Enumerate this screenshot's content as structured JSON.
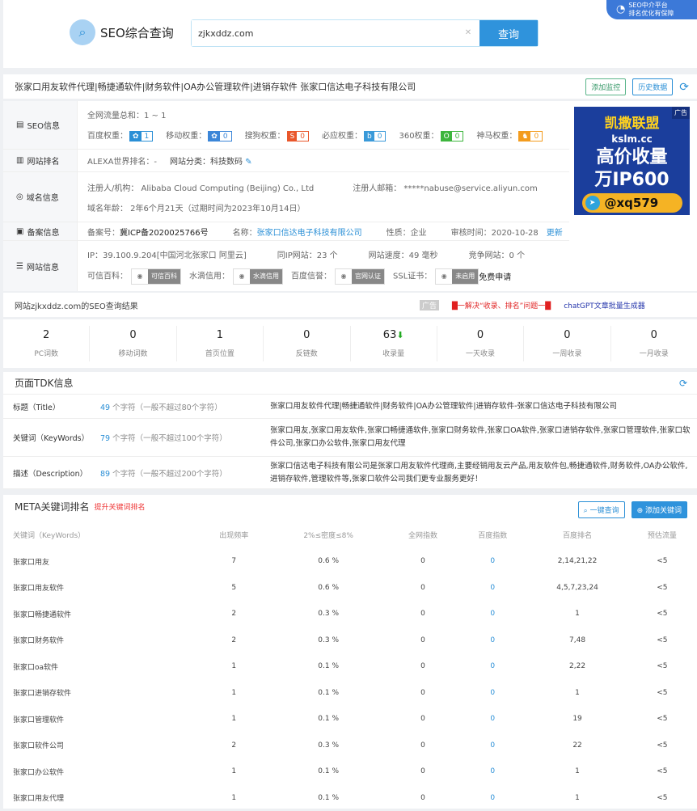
{
  "header": {
    "logo": "SEO综合查询",
    "search_value": "zjkxddz.com",
    "search_button": "查询",
    "promo_line1": "SEO中介平台",
    "promo_line2": "排名优化有保障"
  },
  "titlebar": {
    "title": "张家口用友软件代理|畅捷通软件|财务软件|OA办公管理软件|进销存软件 张家口信达电子科技有限公司",
    "monitor": "添加监控",
    "history": "历史数据"
  },
  "seo": {
    "label": "SEO信息",
    "traffic": "全网流量总和：1 ~ 1",
    "weights": [
      {
        "name": "百度权重：",
        "value": "1",
        "color": "#2a8fd6",
        "glyph": "✿"
      },
      {
        "name": "移动权重：",
        "value": "0",
        "color": "#3b86d8",
        "glyph": "✿"
      },
      {
        "name": "搜狗权重：",
        "value": "0",
        "color": "#e9572b",
        "glyph": "S"
      },
      {
        "name": "必应权重：",
        "value": "0",
        "color": "#3a9ad9",
        "glyph": "b"
      },
      {
        "name": "360权重：",
        "value": "0",
        "color": "#3db53d",
        "glyph": "O"
      },
      {
        "name": "神马权重：",
        "value": "0",
        "color": "#f39c1e",
        "glyph": "♞"
      }
    ]
  },
  "rank": {
    "label": "网站排名",
    "alexa": "ALEXA世界排名：-",
    "category": "网站分类：科技数码"
  },
  "domain": {
    "label": "域名信息",
    "registrant": "注册人/机构： Alibaba Cloud Computing (Beijing) Co., Ltd",
    "email": "注册人邮箱： *****nabuse@service.aliyun.com",
    "age": "域名年龄： 2年6个月21天（过期时间为2023年10月14日）"
  },
  "icp": {
    "label": "备案信息",
    "number_label": "备案号：",
    "number": "冀ICP备2020025766号",
    "name_label": "名称：",
    "name": "张家口信达电子科技有限公司",
    "type": "性质：企业",
    "time": "审核时间：2020-10-28",
    "update": "更新"
  },
  "site": {
    "label": "网站信息",
    "ip": "IP：39.100.9.204[中国河北张家口 阿里云]",
    "same_ip": "同IP网站：23 个",
    "speed": "网站速度：49 毫秒",
    "competitors": "竞争网站：0 个",
    "certs": [
      {
        "label": "可信百科：",
        "badge": "可信百科"
      },
      {
        "label": "水滴信用：",
        "badge": "水滴信用"
      },
      {
        "label": "百度信誉：",
        "badge": "官网认证"
      },
      {
        "label": "SSL证书：",
        "badge": "未启用"
      }
    ],
    "ssl_apply": "免费申请"
  },
  "ad": {
    "tag": "广告",
    "line1": "凯撒联盟",
    "line2": "kslm.cc",
    "line3": "高价收量",
    "line4": "万IP600",
    "contact": "@xq579"
  },
  "result": {
    "text": "网站zjkxddz.com的SEO查询结果",
    "ad_tag": "广告",
    "link1": "█一解决“收录、排名”问题一█",
    "link2": "chatGPT文章批量生成器"
  },
  "stats": [
    {
      "v": "2",
      "l": "PC词数"
    },
    {
      "v": "0",
      "l": "移动词数"
    },
    {
      "v": "1",
      "l": "首页位置"
    },
    {
      "v": "0",
      "l": "反链数"
    },
    {
      "v": "63",
      "l": "收录量",
      "arrow": "⬇"
    },
    {
      "v": "0",
      "l": "一天收录"
    },
    {
      "v": "0",
      "l": "一周收录"
    },
    {
      "v": "0",
      "l": "一月收录"
    }
  ],
  "tdk": {
    "title": "页面TDK信息",
    "rows": [
      {
        "a": "标题（Title）",
        "n": "49",
        "b": " 个字符（一般不超过80个字符）",
        "c": "张家口用友软件代理|畅捷通软件|财务软件|OA办公管理软件|进销存软件-张家口信达电子科技有限公司"
      },
      {
        "a": "关键词（KeyWords）",
        "n": "79",
        "b": " 个字符（一般不超过100个字符）",
        "c": "张家口用友,张家口用友软件,张家口畅捷通软件,张家口财务软件,张家口OA软件,张家口进销存软件,张家口管理软件,张家口软件公司,张家口办公软件,张家口用友代理"
      },
      {
        "a": "描述（Description）",
        "n": "89",
        "b": " 个字符（一般不超过200个字符）",
        "c": "张家口信达电子科技有限公司是张家口用友软件代理商,主要经销用友云产品,用友软件包,畅捷通软件,财务软件,OA办公软件,进销存软件,管理软件等,张家口软件公司我们更专业服务更好！"
      }
    ]
  },
  "meta": {
    "title": "META关键词排名",
    "promo": "提升关键词排名",
    "query_btn": "一键查询",
    "add_btn": "添加关键词",
    "columns": [
      "关键词（KeyWords）",
      "出现频率",
      "2%≤密度≤8%",
      "全网指数",
      "百度指数",
      "百度排名",
      "预估流量"
    ],
    "rows": [
      [
        "张家口用友",
        "7",
        "0.6 %",
        "0",
        "0",
        "2,14,21,22",
        "<5"
      ],
      [
        "张家口用友软件",
        "5",
        "0.6 %",
        "0",
        "0",
        "4,5,7,23,24",
        "<5"
      ],
      [
        "张家口畅捷通软件",
        "2",
        "0.3 %",
        "0",
        "0",
        "1",
        "<5"
      ],
      [
        "张家口财务软件",
        "2",
        "0.3 %",
        "0",
        "0",
        "7,48",
        "<5"
      ],
      [
        "张家口oa软件",
        "1",
        "0.1 %",
        "0",
        "0",
        "2,22",
        "<5"
      ],
      [
        "张家口进销存软件",
        "1",
        "0.1 %",
        "0",
        "0",
        "1",
        "<5"
      ],
      [
        "张家口管理软件",
        "1",
        "0.1 %",
        "0",
        "0",
        "19",
        "<5"
      ],
      [
        "张家口软件公司",
        "2",
        "0.3 %",
        "0",
        "0",
        "22",
        "<5"
      ],
      [
        "张家口办公软件",
        "1",
        "0.1 %",
        "0",
        "0",
        "1",
        "<5"
      ],
      [
        "张家口用友代理",
        "1",
        "0.1 %",
        "0",
        "0",
        "1",
        "<5"
      ]
    ]
  }
}
